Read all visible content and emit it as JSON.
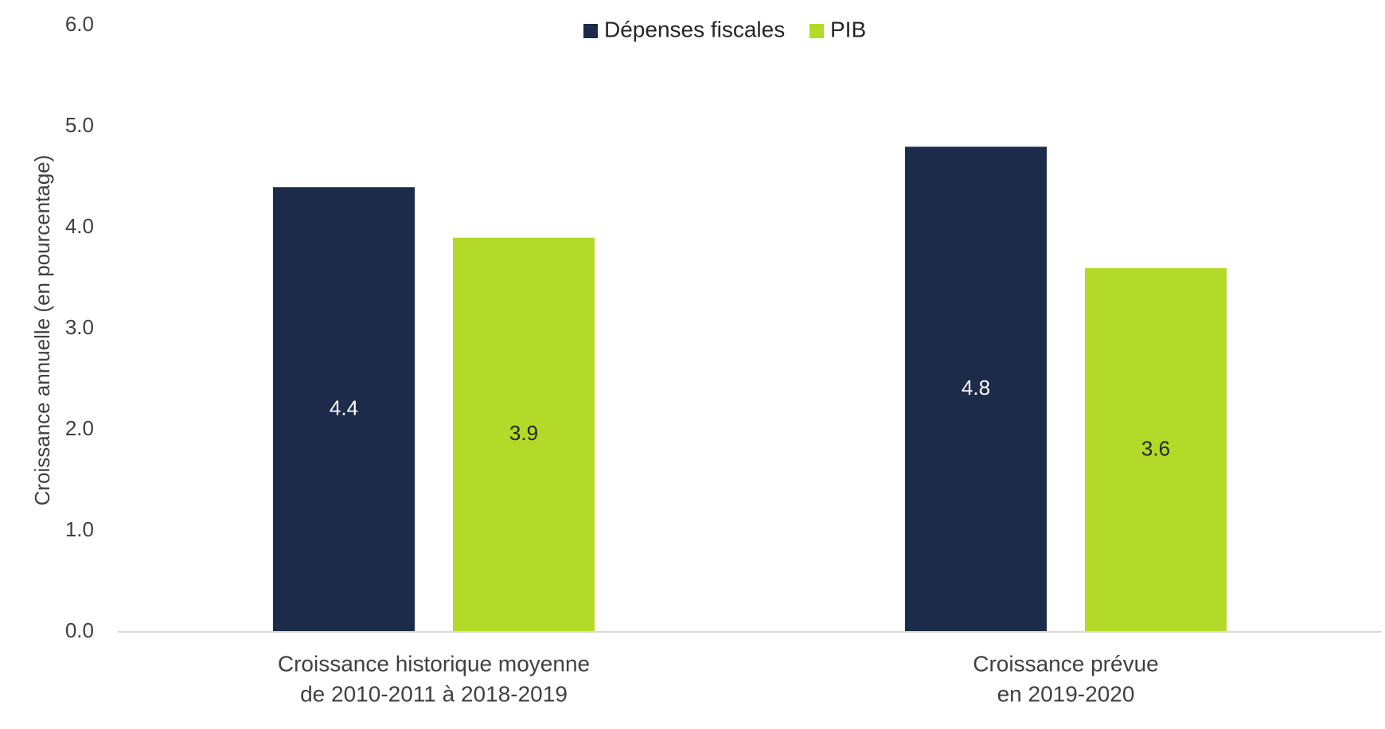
{
  "chart_data": {
    "type": "bar",
    "title": "",
    "xlabel": "",
    "ylabel": "Croissance annuelle (en pourcentage)",
    "ylim": [
      0,
      6
    ],
    "yticks": [
      "0.0",
      "1.0",
      "2.0",
      "3.0",
      "4.0",
      "5.0",
      "6.0"
    ],
    "grid": false,
    "legend_position": "top-center",
    "categories": [
      [
        "Croissance historique moyenne",
        "de 2010-2011 à 2018-2019"
      ],
      [
        "Croissance prévue",
        "en 2019-2020"
      ]
    ],
    "series": [
      {
        "name": "Dépenses fiscales",
        "color": "#1c2b4a",
        "label_color": "#ffffff",
        "values": [
          4.4,
          4.8
        ],
        "value_labels": [
          "4.4",
          "4.8"
        ]
      },
      {
        "name": "PIB",
        "color": "#b3d929",
        "label_color": "#262626",
        "values": [
          3.9,
          3.6
        ],
        "value_labels": [
          "3.9",
          "3.6"
        ]
      }
    ]
  }
}
